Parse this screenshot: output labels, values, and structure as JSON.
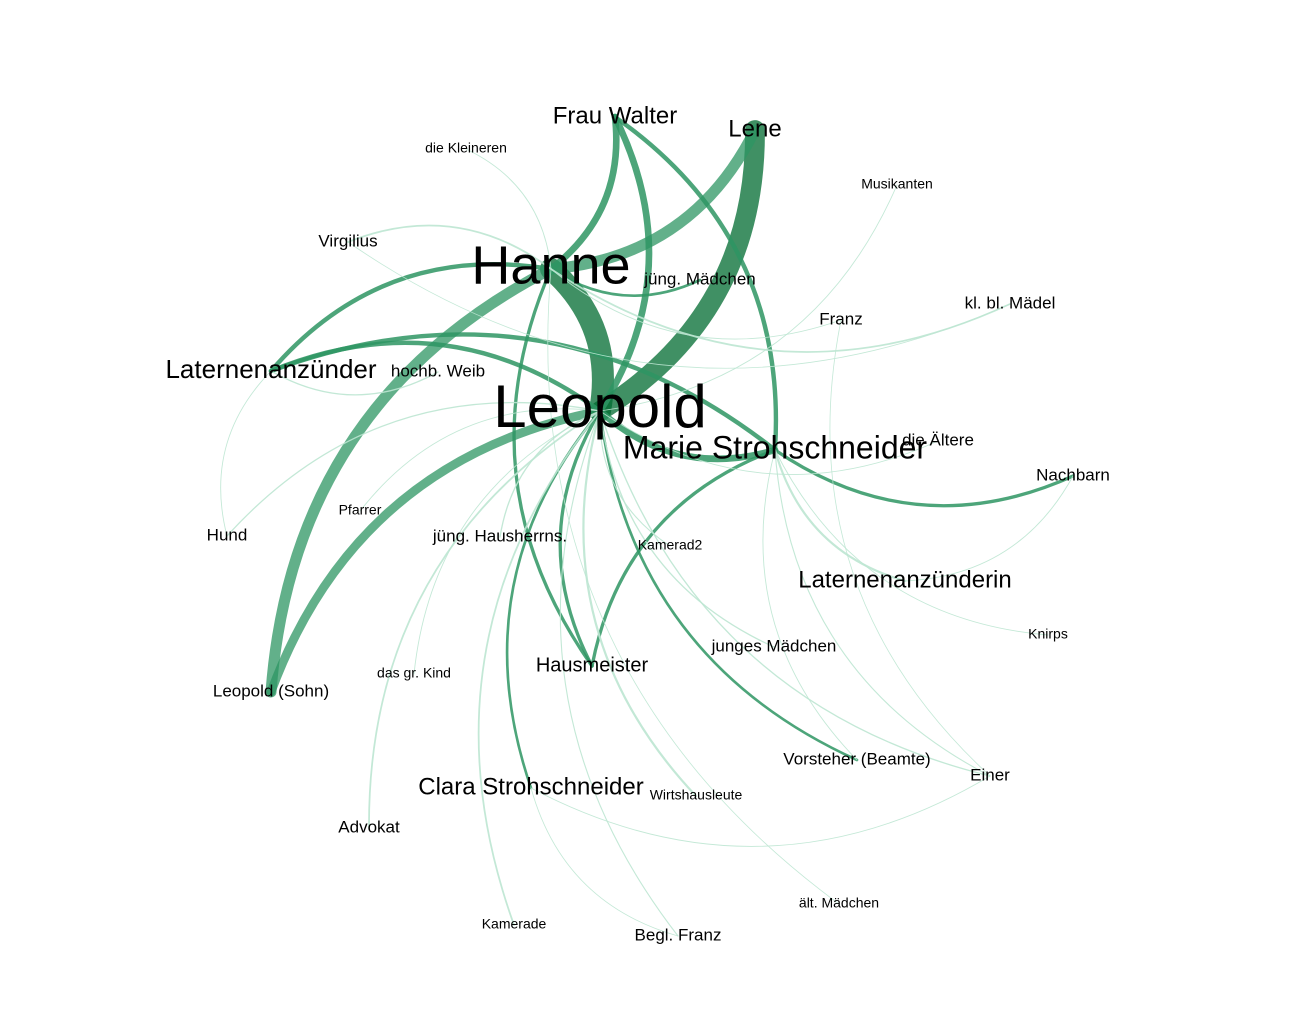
{
  "network": {
    "nodes": [
      {
        "id": "leopold",
        "label": "Leopold",
        "weight": 10
      },
      {
        "id": "hanne",
        "label": "Hanne",
        "weight": 9
      },
      {
        "id": "marie",
        "label": "Marie Strohschneider",
        "weight": 6
      },
      {
        "id": "frau_walter",
        "label": "Frau Walter",
        "weight": 4
      },
      {
        "id": "lene",
        "label": "Lene",
        "weight": 4
      },
      {
        "id": "laternenanzuender",
        "label": "Laternenanzünder",
        "weight": 5
      },
      {
        "id": "laternenanzuenderin",
        "label": "Laternenanzünderin",
        "weight": 4
      },
      {
        "id": "clara",
        "label": "Clara Strohschneider",
        "weight": 4
      },
      {
        "id": "hausmeister",
        "label": "Hausmeister",
        "weight": 3
      },
      {
        "id": "nachbarn",
        "label": "Nachbarn",
        "weight": 2
      },
      {
        "id": "einer",
        "label": "Einer",
        "weight": 2
      },
      {
        "id": "vorsteher",
        "label": "Vorsteher (Beamte)",
        "weight": 2
      },
      {
        "id": "leopold_sohn",
        "label": "Leopold (Sohn)",
        "weight": 2
      },
      {
        "id": "junges_maedchen",
        "label": "junges Mädchen",
        "weight": 2
      },
      {
        "id": "jueng_hausherrns",
        "label": "jüng. Hausherrns.",
        "weight": 2
      },
      {
        "id": "jueng_maedchen",
        "label": "jüng. Mädchen",
        "weight": 2
      },
      {
        "id": "kl_bl_maedel",
        "label": "kl. bl. Mädel",
        "weight": 2
      },
      {
        "id": "franz",
        "label": "Franz",
        "weight": 2
      },
      {
        "id": "hochb_weib",
        "label": "hochb. Weib",
        "weight": 2
      },
      {
        "id": "die_aeltere",
        "label": "die Ältere",
        "weight": 2
      },
      {
        "id": "virgilius",
        "label": "Virgilius",
        "weight": 2
      },
      {
        "id": "hund",
        "label": "Hund",
        "weight": 2
      },
      {
        "id": "advokat",
        "label": "Advokat",
        "weight": 2
      },
      {
        "id": "begl_franz",
        "label": "Begl. Franz",
        "weight": 2
      },
      {
        "id": "die_kleineren",
        "label": "die Kleineren",
        "weight": 1
      },
      {
        "id": "musikanten",
        "label": "Musikanten",
        "weight": 1
      },
      {
        "id": "pfarrer",
        "label": "Pfarrer",
        "weight": 1
      },
      {
        "id": "kamerad2",
        "label": "Kamerad2",
        "weight": 1
      },
      {
        "id": "knirps",
        "label": "Knirps",
        "weight": 1
      },
      {
        "id": "das_gr_kind",
        "label": "das gr. Kind",
        "weight": 1
      },
      {
        "id": "wirtshausleute",
        "label": "Wirtshausleute",
        "weight": 1
      },
      {
        "id": "kamerade",
        "label": "Kamerade",
        "weight": 1
      },
      {
        "id": "aelt_maedchen",
        "label": "ält. Mädchen",
        "weight": 1
      }
    ],
    "edges": [
      {
        "source": "leopold",
        "target": "hanne",
        "weight": 10
      },
      {
        "source": "leopold",
        "target": "lene",
        "weight": 9
      },
      {
        "source": "hanne",
        "target": "lene",
        "weight": 5
      },
      {
        "source": "hanne",
        "target": "leopold_sohn",
        "weight": 5
      },
      {
        "source": "leopold",
        "target": "leopold_sohn",
        "weight": 4
      },
      {
        "source": "leopold",
        "target": "frau_walter",
        "weight": 3
      },
      {
        "source": "hanne",
        "target": "frau_walter",
        "weight": 3
      },
      {
        "source": "leopold",
        "target": "marie",
        "weight": 3
      },
      {
        "source": "hanne",
        "target": "laternenanzuender",
        "weight": 2
      },
      {
        "source": "leopold",
        "target": "laternenanzuender",
        "weight": 2
      },
      {
        "source": "marie",
        "target": "laternenanzuender",
        "weight": 2
      },
      {
        "source": "marie",
        "target": "frau_walter",
        "weight": 2
      },
      {
        "source": "marie",
        "target": "nachbarn",
        "weight": 1.5
      },
      {
        "source": "leopold",
        "target": "hausmeister",
        "weight": 1.5
      },
      {
        "source": "hanne",
        "target": "hausmeister",
        "weight": 1.5
      },
      {
        "source": "marie",
        "target": "hausmeister",
        "weight": 1.5
      },
      {
        "source": "hanne",
        "target": "jueng_maedchen",
        "weight": 1.2
      },
      {
        "source": "leopold",
        "target": "clara",
        "weight": 1.2
      },
      {
        "source": "leopold",
        "target": "vorsteher",
        "weight": 1.2
      },
      {
        "source": "marie",
        "target": "laternenanzuenderin",
        "weight": 1
      },
      {
        "source": "leopold",
        "target": "wirtshausleute",
        "weight": 1
      },
      {
        "source": "hanne",
        "target": "virgilius",
        "weight": 0.8
      },
      {
        "source": "leopold",
        "target": "advokat",
        "weight": 0.8
      },
      {
        "source": "leopold",
        "target": "kamerade",
        "weight": 0.8
      },
      {
        "source": "hanne",
        "target": "kl_bl_maedel",
        "weight": 0.8
      },
      {
        "source": "leopold",
        "target": "hund",
        "weight": 0.6
      },
      {
        "source": "leopold",
        "target": "jueng_hausherrns",
        "weight": 0.6
      },
      {
        "source": "leopold",
        "target": "einer",
        "weight": 0.6
      },
      {
        "source": "marie",
        "target": "einer",
        "weight": 0.5
      },
      {
        "source": "laternenanzuender",
        "target": "hochb_weib",
        "weight": 0.6
      },
      {
        "source": "leopold",
        "target": "begl_franz",
        "weight": 0.5
      },
      {
        "source": "marie",
        "target": "knirps",
        "weight": 0.4
      },
      {
        "source": "leopold",
        "target": "musikanten",
        "weight": 0.4
      },
      {
        "source": "hanne",
        "target": "die_kleineren",
        "weight": 0.4
      },
      {
        "source": "hanne",
        "target": "franz",
        "weight": 0.4
      },
      {
        "source": "leopold",
        "target": "die_aeltere",
        "weight": 0.4
      },
      {
        "source": "laternenanzuender",
        "target": "hund",
        "weight": 0.4
      },
      {
        "source": "laternenanzuenderin",
        "target": "nachbarn",
        "weight": 0.4
      },
      {
        "source": "clara",
        "target": "einer",
        "weight": 0.4
      },
      {
        "source": "leopold",
        "target": "kamerad2",
        "weight": 0.5
      },
      {
        "source": "leopold",
        "target": "pfarrer",
        "weight": 0.4
      },
      {
        "source": "leopold",
        "target": "junges_maedchen",
        "weight": 0.6
      },
      {
        "source": "leopold",
        "target": "das_gr_kind",
        "weight": 0.4
      },
      {
        "source": "hanne",
        "target": "aelt_maedchen",
        "weight": 0.3
      },
      {
        "source": "marie",
        "target": "vorsteher",
        "weight": 0.4
      },
      {
        "source": "clara",
        "target": "begl_franz",
        "weight": 0.3
      },
      {
        "source": "franz",
        "target": "einer",
        "weight": 0.3
      },
      {
        "source": "virgilius",
        "target": "kl_bl_maedel",
        "weight": 0.3
      }
    ],
    "colors": {
      "edge_strong": "#006b30",
      "edge_mid": "#2e9563",
      "edge_light": "#bde5d2",
      "label": "#000000",
      "background": "#ffffff"
    }
  }
}
